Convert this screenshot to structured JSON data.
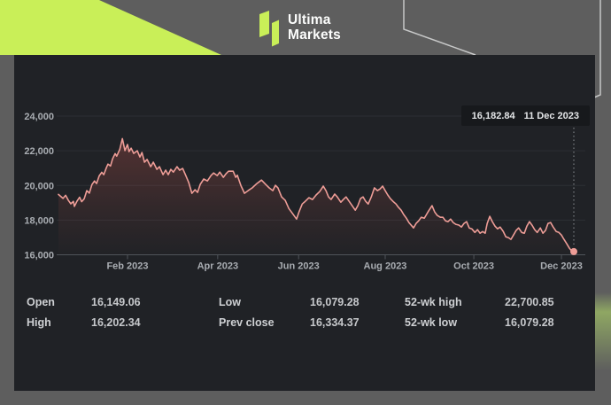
{
  "header": {
    "brand": {
      "line1": "Ultima",
      "line2": "Markets"
    },
    "colors": {
      "lime": "#c9ef58",
      "background": "#5e5e5e"
    }
  },
  "chart": {
    "tooltip": {
      "price": "16,182.84",
      "date": "11 Dec 2023"
    },
    "colors": {
      "panel": "#202226",
      "grid": "#2c2f34",
      "axis": "#50545a",
      "axis_text": "#a9adb2",
      "dotted": "#8d9094"
    }
  },
  "chart_data": {
    "type": "line",
    "title": "",
    "xlabel": "",
    "ylabel": "",
    "ylim": [
      16000,
      24000
    ],
    "grid": "horizontal",
    "legend": "none",
    "line_color": "#ee9d97",
    "area_color": "#d25a50",
    "yticks": [
      {
        "label": "24,000",
        "value": 24000
      },
      {
        "label": "22,000",
        "value": 22000
      },
      {
        "label": "20,000",
        "value": 20000
      },
      {
        "label": "18,000",
        "value": 18000
      },
      {
        "label": "16,000",
        "value": 16000
      }
    ],
    "xticks": [
      {
        "label": "Feb 2023",
        "t": 0.134
      },
      {
        "label": "Apr 2023",
        "t": 0.309
      },
      {
        "label": "Jun 2023",
        "t": 0.466
      },
      {
        "label": "Aug 2023",
        "t": 0.634
      },
      {
        "label": "Oct 2023",
        "t": 0.806
      },
      {
        "label": "Dec 2023",
        "t": 0.976
      }
    ],
    "end_marker": {
      "t": 1.0,
      "price": 16182.84,
      "label": "16,182.84",
      "date": "11 Dec 2023"
    },
    "series": [
      {
        "name": "price",
        "points": [
          [
            0.0,
            19480
          ],
          [
            0.009,
            19250
          ],
          [
            0.014,
            19430
          ],
          [
            0.019,
            19150
          ],
          [
            0.024,
            18940
          ],
          [
            0.029,
            19080
          ],
          [
            0.031,
            18790
          ],
          [
            0.036,
            19100
          ],
          [
            0.041,
            19320
          ],
          [
            0.045,
            19060
          ],
          [
            0.05,
            19230
          ],
          [
            0.055,
            19700
          ],
          [
            0.06,
            19560
          ],
          [
            0.065,
            20050
          ],
          [
            0.07,
            20260
          ],
          [
            0.074,
            20110
          ],
          [
            0.079,
            20550
          ],
          [
            0.084,
            20760
          ],
          [
            0.088,
            20620
          ],
          [
            0.093,
            21020
          ],
          [
            0.096,
            21230
          ],
          [
            0.101,
            21120
          ],
          [
            0.105,
            21530
          ],
          [
            0.11,
            21840
          ],
          [
            0.113,
            21690
          ],
          [
            0.119,
            22090
          ],
          [
            0.122,
            22450
          ],
          [
            0.124,
            22700
          ],
          [
            0.129,
            22010
          ],
          [
            0.134,
            22360
          ],
          [
            0.137,
            21950
          ],
          [
            0.141,
            22150
          ],
          [
            0.146,
            21850
          ],
          [
            0.153,
            22000
          ],
          [
            0.158,
            21640
          ],
          [
            0.162,
            21900
          ],
          [
            0.167,
            21340
          ],
          [
            0.172,
            21500
          ],
          [
            0.179,
            21080
          ],
          [
            0.184,
            21340
          ],
          [
            0.191,
            20930
          ],
          [
            0.196,
            21080
          ],
          [
            0.203,
            20620
          ],
          [
            0.208,
            20880
          ],
          [
            0.213,
            20620
          ],
          [
            0.218,
            20930
          ],
          [
            0.223,
            20770
          ],
          [
            0.23,
            21080
          ],
          [
            0.235,
            20880
          ],
          [
            0.241,
            20980
          ],
          [
            0.247,
            20570
          ],
          [
            0.253,
            20160
          ],
          [
            0.259,
            19550
          ],
          [
            0.265,
            19750
          ],
          [
            0.27,
            19600
          ],
          [
            0.275,
            20060
          ],
          [
            0.282,
            20370
          ],
          [
            0.289,
            20260
          ],
          [
            0.296,
            20570
          ],
          [
            0.301,
            20720
          ],
          [
            0.308,
            20570
          ],
          [
            0.313,
            20770
          ],
          [
            0.32,
            20470
          ],
          [
            0.325,
            20670
          ],
          [
            0.33,
            20820
          ],
          [
            0.339,
            20820
          ],
          [
            0.344,
            20470
          ],
          [
            0.347,
            20590
          ],
          [
            0.354,
            20000
          ],
          [
            0.361,
            19550
          ],
          [
            0.368,
            19700
          ],
          [
            0.376,
            19860
          ],
          [
            0.385,
            20110
          ],
          [
            0.394,
            20310
          ],
          [
            0.402,
            20060
          ],
          [
            0.409,
            19860
          ],
          [
            0.416,
            19700
          ],
          [
            0.421,
            20010
          ],
          [
            0.426,
            19860
          ],
          [
            0.433,
            19340
          ],
          [
            0.44,
            19140
          ],
          [
            0.447,
            18670
          ],
          [
            0.454,
            18390
          ],
          [
            0.462,
            18060
          ],
          [
            0.467,
            18490
          ],
          [
            0.473,
            18930
          ],
          [
            0.479,
            19090
          ],
          [
            0.486,
            19290
          ],
          [
            0.493,
            19190
          ],
          [
            0.5,
            19450
          ],
          [
            0.507,
            19650
          ],
          [
            0.514,
            19960
          ],
          [
            0.519,
            19700
          ],
          [
            0.524,
            19340
          ],
          [
            0.529,
            19190
          ],
          [
            0.536,
            19500
          ],
          [
            0.541,
            19340
          ],
          [
            0.548,
            19030
          ],
          [
            0.553,
            19190
          ],
          [
            0.558,
            19340
          ],
          [
            0.564,
            19090
          ],
          [
            0.57,
            18830
          ],
          [
            0.576,
            18570
          ],
          [
            0.581,
            18830
          ],
          [
            0.586,
            19240
          ],
          [
            0.591,
            19340
          ],
          [
            0.596,
            19090
          ],
          [
            0.601,
            18930
          ],
          [
            0.607,
            19340
          ],
          [
            0.613,
            19860
          ],
          [
            0.619,
            19700
          ],
          [
            0.624,
            19800
          ],
          [
            0.629,
            19960
          ],
          [
            0.634,
            19700
          ],
          [
            0.639,
            19450
          ],
          [
            0.644,
            19240
          ],
          [
            0.649,
            19090
          ],
          [
            0.655,
            18930
          ],
          [
            0.66,
            18730
          ],
          [
            0.665,
            18570
          ],
          [
            0.67,
            18320
          ],
          [
            0.675,
            18110
          ],
          [
            0.68,
            17860
          ],
          [
            0.686,
            17650
          ],
          [
            0.689,
            17550
          ],
          [
            0.694,
            17810
          ],
          [
            0.699,
            17960
          ],
          [
            0.704,
            18160
          ],
          [
            0.71,
            18110
          ],
          [
            0.713,
            18270
          ],
          [
            0.718,
            18520
          ],
          [
            0.725,
            18830
          ],
          [
            0.73,
            18470
          ],
          [
            0.735,
            18270
          ],
          [
            0.741,
            18160
          ],
          [
            0.746,
            18160
          ],
          [
            0.751,
            17960
          ],
          [
            0.756,
            17910
          ],
          [
            0.761,
            18060
          ],
          [
            0.766,
            17860
          ],
          [
            0.771,
            17760
          ],
          [
            0.777,
            17710
          ],
          [
            0.782,
            17600
          ],
          [
            0.787,
            17810
          ],
          [
            0.792,
            17910
          ],
          [
            0.797,
            17550
          ],
          [
            0.802,
            17500
          ],
          [
            0.808,
            17290
          ],
          [
            0.813,
            17450
          ],
          [
            0.818,
            17240
          ],
          [
            0.823,
            17340
          ],
          [
            0.828,
            17240
          ],
          [
            0.832,
            17810
          ],
          [
            0.837,
            18220
          ],
          [
            0.842,
            17910
          ],
          [
            0.847,
            17650
          ],
          [
            0.852,
            17500
          ],
          [
            0.857,
            17600
          ],
          [
            0.863,
            17350
          ],
          [
            0.868,
            17040
          ],
          [
            0.873,
            16990
          ],
          [
            0.878,
            16890
          ],
          [
            0.883,
            17140
          ],
          [
            0.888,
            17400
          ],
          [
            0.893,
            17550
          ],
          [
            0.899,
            17290
          ],
          [
            0.904,
            17240
          ],
          [
            0.909,
            17650
          ],
          [
            0.914,
            17910
          ],
          [
            0.919,
            17700
          ],
          [
            0.924,
            17450
          ],
          [
            0.929,
            17290
          ],
          [
            0.935,
            17550
          ],
          [
            0.94,
            17240
          ],
          [
            0.945,
            17400
          ],
          [
            0.95,
            17810
          ],
          [
            0.955,
            17860
          ],
          [
            0.96,
            17600
          ],
          [
            0.966,
            17340
          ],
          [
            0.971,
            17290
          ],
          [
            0.976,
            17140
          ],
          [
            0.981,
            16890
          ],
          [
            0.986,
            16650
          ],
          [
            0.991,
            16400
          ],
          [
            0.995,
            16250
          ],
          [
            0.998,
            16090
          ],
          [
            1.0,
            16182.84
          ]
        ]
      }
    ]
  },
  "stats": {
    "items": [
      {
        "label": "Open",
        "value": "16,149.06"
      },
      {
        "label": "High",
        "value": "16,202.34"
      },
      {
        "label": "Low",
        "value": "16,079.28"
      },
      {
        "label": "Prev close",
        "value": "16,334.37"
      },
      {
        "label": "52-wk high",
        "value": "22,700.85"
      },
      {
        "label": "52-wk low",
        "value": "16,079.28"
      }
    ]
  }
}
